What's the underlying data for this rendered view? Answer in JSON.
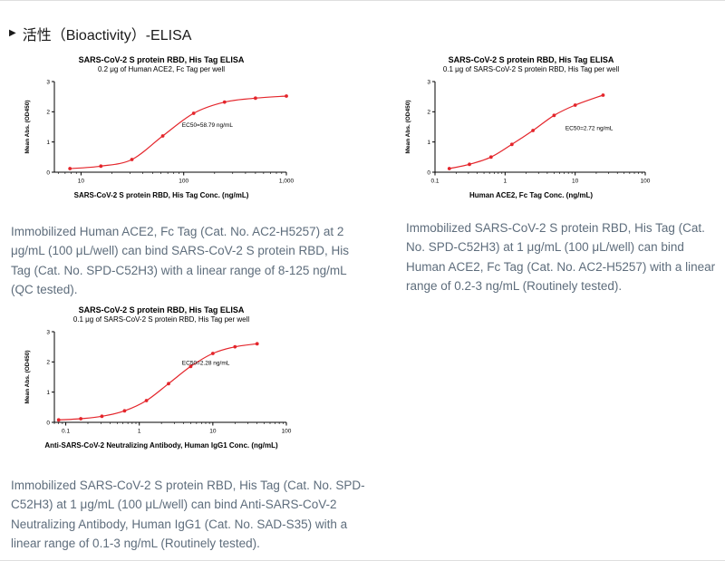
{
  "section": {
    "bullet": "▶",
    "heading": "活性（Bioactivity）-ELISA"
  },
  "colors": {
    "curve_red": "#e4252b",
    "axis_black": "#000000",
    "caption_gray_blue": "#5e6d7c"
  },
  "chart_data": [
    {
      "type": "scatter",
      "title": "SARS-CoV-2 S protein RBD, His Tag ELISA",
      "subtitle": "0.2 μg of Human ACE2, Fc Tag per well",
      "xlabel": "SARS-CoV-2 S protein RBD, His Tag Conc. (ng/mL)",
      "ylabel": "Mean Abs. (OD450)",
      "xscale": "log",
      "xlim": [
        5.5,
        1000
      ],
      "ylim": [
        0,
        3
      ],
      "yticks": [
        0,
        1,
        2,
        3
      ],
      "xticks": [
        {
          "value": 10,
          "label": "10"
        },
        {
          "value": 100,
          "label": "100"
        },
        {
          "value": 1000,
          "label": "1,000"
        }
      ],
      "annotation": "EC50=58.79 ng/mL",
      "annotation_pos": {
        "x_frac": 0.55,
        "y_value": 1.5
      },
      "series_color": "#e4252b",
      "points": [
        [
          7.8,
          0.12
        ],
        [
          15.6,
          0.2
        ],
        [
          31.3,
          0.42
        ],
        [
          62.5,
          1.2
        ],
        [
          125,
          1.95
        ],
        [
          250,
          2.32
        ],
        [
          500,
          2.45
        ],
        [
          1000,
          2.52
        ]
      ]
    },
    {
      "type": "scatter",
      "title": "SARS-CoV-2 S protein RBD, His Tag ELISA",
      "subtitle": "0.1 μg of SARS-CoV-2 S protein RBD, His Tag per well",
      "xlabel": "Human ACE2, Fc Tag Conc. (ng/mL)",
      "ylabel": "Mean Abs. (OD450)",
      "xscale": "log",
      "xlim": [
        0.1,
        100
      ],
      "ylim": [
        0,
        3
      ],
      "yticks": [
        0,
        1,
        2,
        3
      ],
      "xticks": [
        {
          "value": 0.1,
          "label": "0.1"
        },
        {
          "value": 1,
          "label": "1"
        },
        {
          "value": 10,
          "label": "10"
        },
        {
          "value": 100,
          "label": "100"
        }
      ],
      "annotation": "EC50=2.72 ng/mL",
      "annotation_pos": {
        "x_frac": 0.62,
        "y_value": 1.4
      },
      "series_color": "#e4252b",
      "points": [
        [
          0.16,
          0.12
        ],
        [
          0.31,
          0.26
        ],
        [
          0.63,
          0.5
        ],
        [
          1.25,
          0.92
        ],
        [
          2.5,
          1.38
        ],
        [
          5,
          1.88
        ],
        [
          10,
          2.22
        ],
        [
          25,
          2.55
        ]
      ]
    },
    {
      "type": "scatter",
      "title": "SARS-CoV-2 S protein RBD, His Tag ELISA",
      "subtitle": "0.1 μg of SARS-CoV-2 S protein RBD, His Tag per well",
      "xlabel": "Anti-SARS-CoV-2 Neutralizing Antibody, Human IgG1 Conc. (ng/mL)",
      "ylabel": "Mean Abs. (OD450)",
      "xscale": "log",
      "xlim": [
        0.07,
        100
      ],
      "ylim": [
        0,
        3
      ],
      "yticks": [
        0,
        1,
        2,
        3
      ],
      "xticks": [
        {
          "value": 0.1,
          "label": "0.1"
        },
        {
          "value": 1,
          "label": "1"
        },
        {
          "value": 10,
          "label": "10"
        },
        {
          "value": 100,
          "label": "100"
        }
      ],
      "annotation": "EC50=2.28 ng/mL",
      "annotation_pos": {
        "x_frac": 0.55,
        "y_value": 1.9
      },
      "series_color": "#e4252b",
      "points": [
        [
          0.08,
          0.08
        ],
        [
          0.16,
          0.12
        ],
        [
          0.31,
          0.2
        ],
        [
          0.63,
          0.38
        ],
        [
          1.25,
          0.72
        ],
        [
          2.5,
          1.28
        ],
        [
          5,
          1.85
        ],
        [
          10,
          2.28
        ],
        [
          20,
          2.5
        ],
        [
          40,
          2.6
        ]
      ]
    }
  ],
  "captions": [
    {
      "text": "Immobilized Human ACE2, Fc Tag (Cat. No. AC2-H5257) at 2 μg/mL (100 μL/well) can bind SARS-CoV-2 S protein RBD, His Tag (Cat. No. SPD-C52H3) with a linear range of 8-125 ng/mL (QC tested)."
    },
    {
      "text": "Immobilized SARS-CoV-2 S protein RBD, His Tag (Cat. No. SPD-C52H3) at 1 μg/mL (100 μL/well) can bind Human ACE2, Fc Tag (Cat. No. AC2-H5257) with a linear range of 0.2-3 ng/mL (Routinely tested)."
    },
    {
      "text": "Immobilized SARS-CoV-2 S protein RBD, His Tag (Cat. No. SPD-C52H3) at 1 μg/mL (100 μL/well) can bind Anti-SARS-CoV-2 Neutralizing Antibody, Human IgG1 (Cat. No. SAD-S35) with a linear range of 0.1-3 ng/mL (Routinely tested)."
    }
  ]
}
